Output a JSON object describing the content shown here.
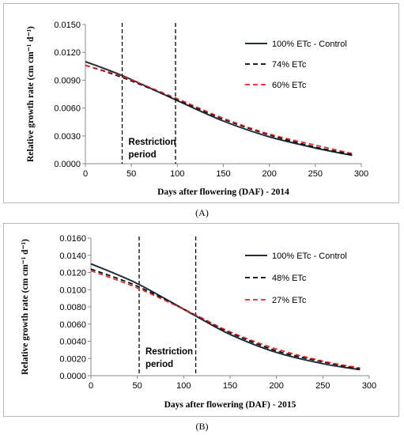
{
  "captions": [
    "(A)",
    "(B)"
  ],
  "chart_data": [
    {
      "type": "line",
      "xlabel": "Days after flowering (DAF) - 2014",
      "ylabel": "Relative growth rate (cm cm⁻¹ d⁻¹)",
      "xlim": [
        0,
        300
      ],
      "ylim": [
        0,
        0.015
      ],
      "xticks": [
        0,
        50,
        100,
        150,
        200,
        250,
        300
      ],
      "yticks": [
        "0.0000",
        "0.0030",
        "0.0060",
        "0.0090",
        "0.0120",
        "0.0150"
      ],
      "grid": false,
      "legend_position": "top-right",
      "x": [
        0,
        40,
        100,
        150,
        200,
        250,
        290
      ],
      "series": [
        {
          "name": "100% ETc - Control",
          "color": "#1f2d3d",
          "dash": "solid",
          "values": [
            0.011,
            0.0095,
            0.0068,
            0.0046,
            0.0029,
            0.0017,
            0.0009
          ]
        },
        {
          "name": "74% ETc",
          "color": "#000000",
          "dash": "dashed",
          "values": [
            0.0106,
            0.0093,
            0.0069,
            0.0048,
            0.0031,
            0.0018,
            0.001
          ]
        },
        {
          "name": "60% ETc",
          "color": "#e8231f",
          "dash": "dashed",
          "values": [
            0.0106,
            0.0094,
            0.007,
            0.0049,
            0.0032,
            0.002,
            0.0011
          ]
        }
      ],
      "vlines": [
        40,
        98
      ],
      "annotation": [
        "Restriction",
        "period"
      ]
    },
    {
      "type": "line",
      "xlabel": "Days after flowering (DAF) - 2015",
      "ylabel": "Relative growth rate (cm cm⁻¹ d⁻¹)",
      "xlim": [
        0,
        300
      ],
      "ylim": [
        0,
        0.016
      ],
      "xticks": [
        0,
        50,
        100,
        150,
        200,
        250,
        300
      ],
      "yticks": [
        "0.0000",
        "0.0020",
        "0.0040",
        "0.0060",
        "0.0080",
        "0.0100",
        "0.0120",
        "0.0140",
        "0.0160"
      ],
      "grid": false,
      "legend_position": "top-right",
      "x": [
        0,
        50,
        112,
        150,
        200,
        250,
        290
      ],
      "series": [
        {
          "name": "100% ETc - Control",
          "color": "#1f2d3d",
          "dash": "solid",
          "values": [
            0.013,
            0.0107,
            0.007,
            0.0048,
            0.0027,
            0.0014,
            0.0007
          ]
        },
        {
          "name": "48% ETc",
          "color": "#000000",
          "dash": "dashed",
          "values": [
            0.0124,
            0.0104,
            0.0071,
            0.005,
            0.0029,
            0.0016,
            0.0008
          ]
        },
        {
          "name": "27% ETc",
          "color": "#e8231f",
          "dash": "dashed",
          "values": [
            0.0122,
            0.0102,
            0.0071,
            0.0051,
            0.0031,
            0.0017,
            0.0009
          ]
        }
      ],
      "vlines": [
        52,
        113
      ],
      "annotation": [
        "Restriction",
        "period"
      ]
    }
  ]
}
